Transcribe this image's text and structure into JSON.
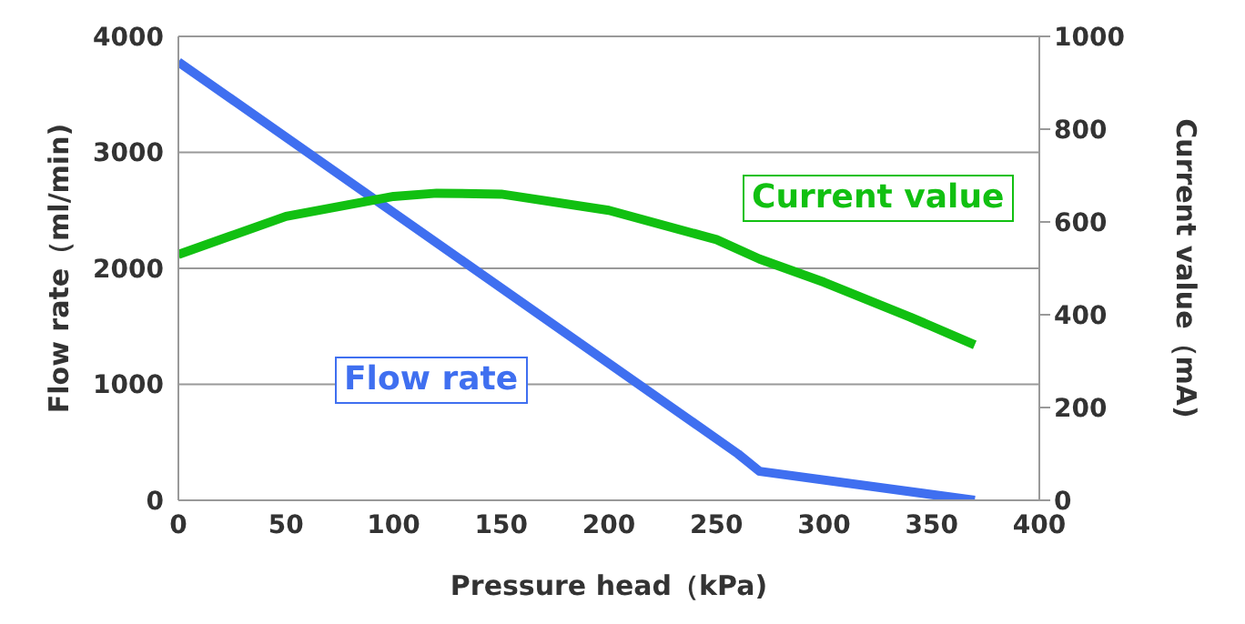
{
  "chart_data": {
    "type": "line",
    "xlabel": "Pressure head（kPa)",
    "ylabel": "Flow rate（ml/min)",
    "y2label": "Current value（mA)",
    "series": [
      {
        "name": "Flow rate",
        "color": "#3f6ff0",
        "x": [
          0,
          260,
          270,
          370
        ],
        "values": [
          3780,
          400,
          250,
          0
        ]
      },
      {
        "name": "Current value",
        "color": "#11c011",
        "axis": "y2",
        "x": [
          0,
          50,
          100,
          120,
          150,
          200,
          250,
          270,
          300,
          340,
          370
        ],
        "values": [
          530,
          612,
          655,
          662,
          660,
          625,
          562,
          520,
          470,
          395,
          335
        ]
      }
    ],
    "xlim": [
      0,
      400
    ],
    "xticks": [
      0,
      50,
      100,
      150,
      200,
      250,
      300,
      350,
      400
    ],
    "ylim": [
      0,
      4000
    ],
    "yticks": [
      0,
      1000,
      2000,
      3000,
      4000
    ],
    "y2lim": [
      0,
      1000
    ],
    "y2ticks": [
      0,
      200,
      400,
      600,
      800,
      1000
    ],
    "grid": "y",
    "legend": false,
    "marker": "none",
    "line_style": "solid"
  }
}
